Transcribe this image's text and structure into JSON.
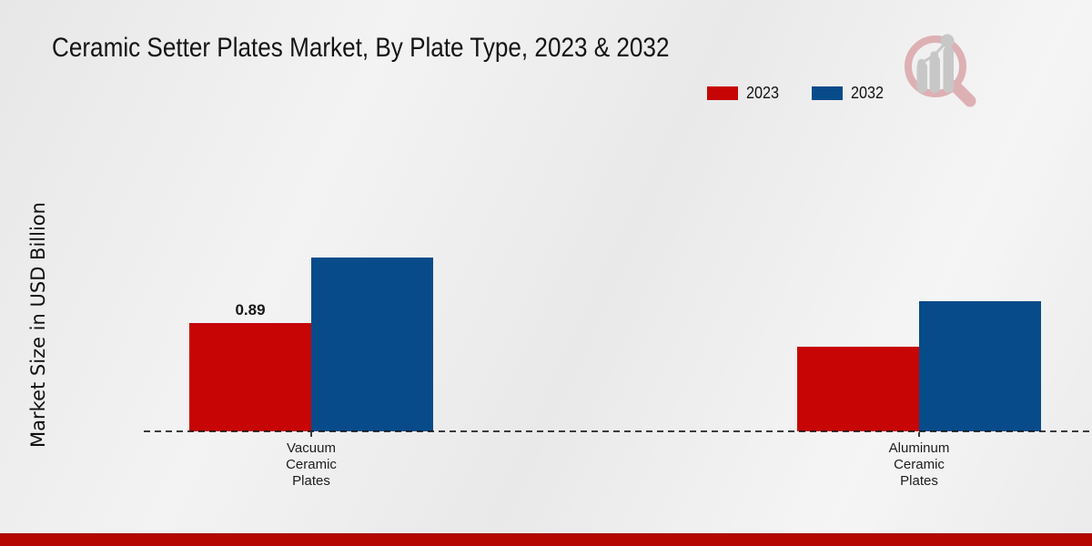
{
  "header": {
    "title": "Ceramic Setter Plates Market, By Plate Type, 2023 & 2032"
  },
  "legend": {
    "items": [
      {
        "label": "2023",
        "color": "#c60504"
      },
      {
        "label": "2032",
        "color": "#084b8a"
      }
    ]
  },
  "watermark_icon": "magnifier-bar-chart-logo",
  "footer": {
    "accent_color": "#b50702"
  },
  "chart_data": {
    "type": "bar",
    "title": "Ceramic Setter Plates Market, By Plate Type, 2023 & 2032",
    "xlabel": "",
    "ylabel": "Market Size in USD Billion",
    "categories": [
      "Vacuum Ceramic Plates",
      "Aluminum Ceramic Plates"
    ],
    "series": [
      {
        "name": "2023",
        "color": "#c60504",
        "values": [
          0.89,
          0.7
        ]
      },
      {
        "name": "2032",
        "color": "#084b8a",
        "values": [
          1.43,
          1.07
        ]
      }
    ],
    "data_labels": [
      {
        "series_index": 0,
        "category_index": 0,
        "text": "0.89"
      }
    ],
    "ylim": [
      0,
      1.6
    ],
    "grid": false,
    "y_axis_ticks_visible": false,
    "legend_position": "top-right",
    "baseline_style": "dashed"
  }
}
